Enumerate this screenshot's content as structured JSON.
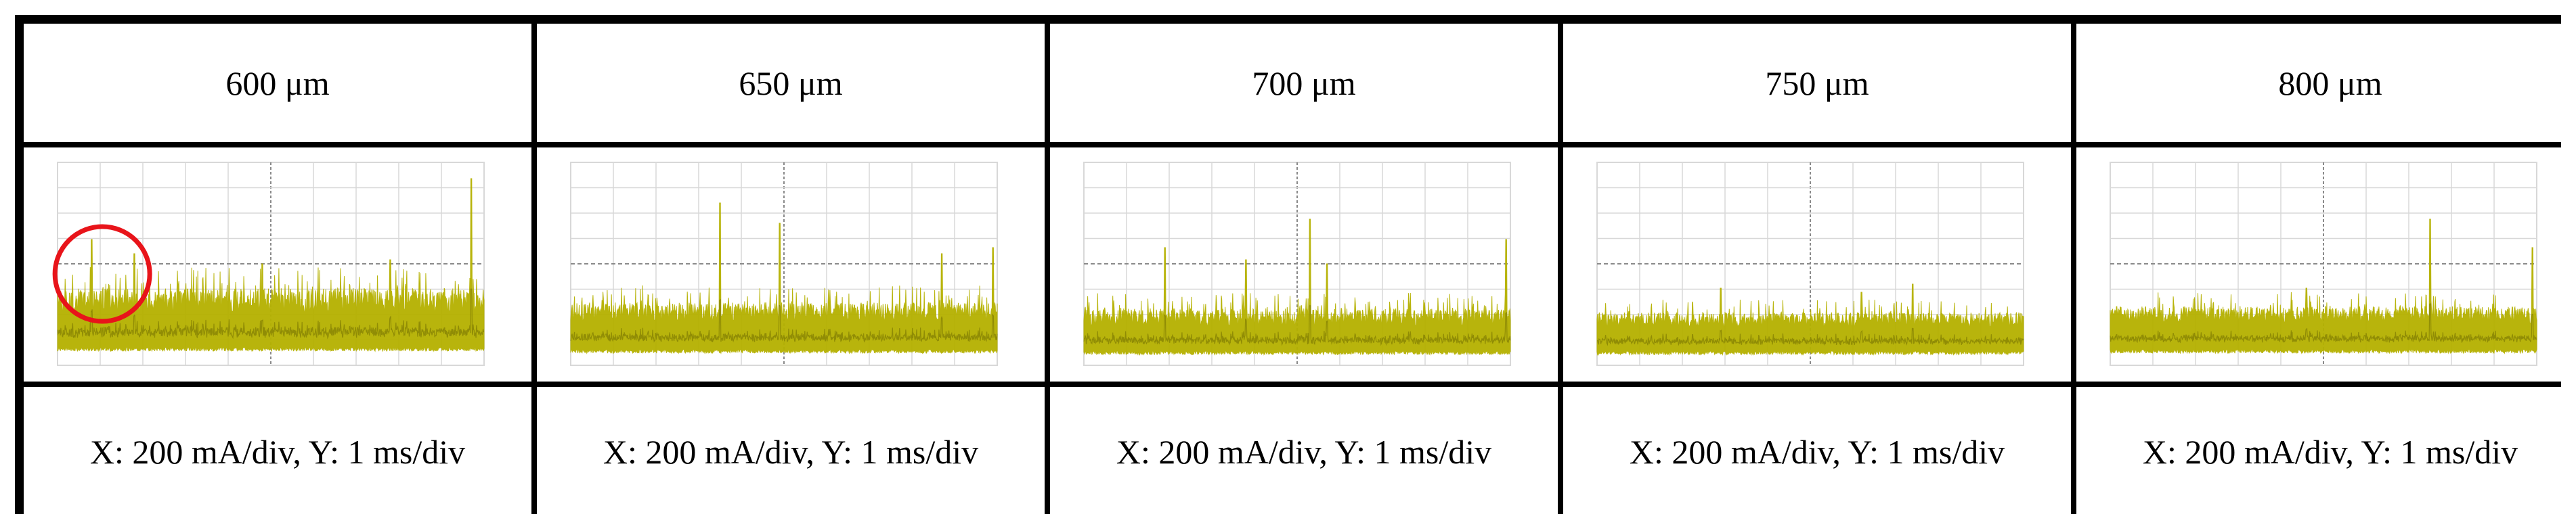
{
  "columns": [
    {
      "header": "600 μm",
      "caption": "X: 200 mA/div, Y: 1 ms/div",
      "highlight": true
    },
    {
      "header": "650 μm",
      "caption": "X: 200 mA/div, Y: 1 ms/div",
      "highlight": false
    },
    {
      "header": "700 μm",
      "caption": "X: 200 mA/div, Y: 1 ms/div",
      "highlight": false
    },
    {
      "header": "750 μm",
      "caption": "X: 200 mA/div, Y: 1 ms/div",
      "highlight": false
    },
    {
      "header": "800 μm",
      "caption": "X: 200 mA/div, Y: 1 ms/div",
      "highlight": false
    }
  ],
  "colors": {
    "signal": "#b5b100",
    "signal_dark": "#6f6c00",
    "grid": "#d8d8d8",
    "axis": "#8a8a8a",
    "highlight_circle": "#e8141a"
  },
  "chart_data": [
    {
      "type": "line",
      "series": [
        {
          "values": "noisy trace, baseline ~1.6 div, spikes to ~4.0 div"
        }
      ],
      "grid": true
    },
    {
      "type": "line",
      "series": [
        {
          "values": "noisy trace, baseline ~1.5 div, spikes to ~3.8 div"
        }
      ],
      "grid": true
    },
    {
      "type": "line",
      "series": [
        {
          "values": "noisy trace, baseline ~1.4 div, spikes to ~3.7 div"
        }
      ],
      "grid": true
    },
    {
      "type": "line",
      "series": [
        {
          "values": "noisy trace, baseline ~1.4 div, spikes to ~2.6 div"
        }
      ],
      "grid": true
    },
    {
      "type": "line",
      "series": [
        {
          "values": "noisy trace, baseline ~1.5 div, spikes to ~3.3 div"
        }
      ],
      "grid": true
    }
  ]
}
